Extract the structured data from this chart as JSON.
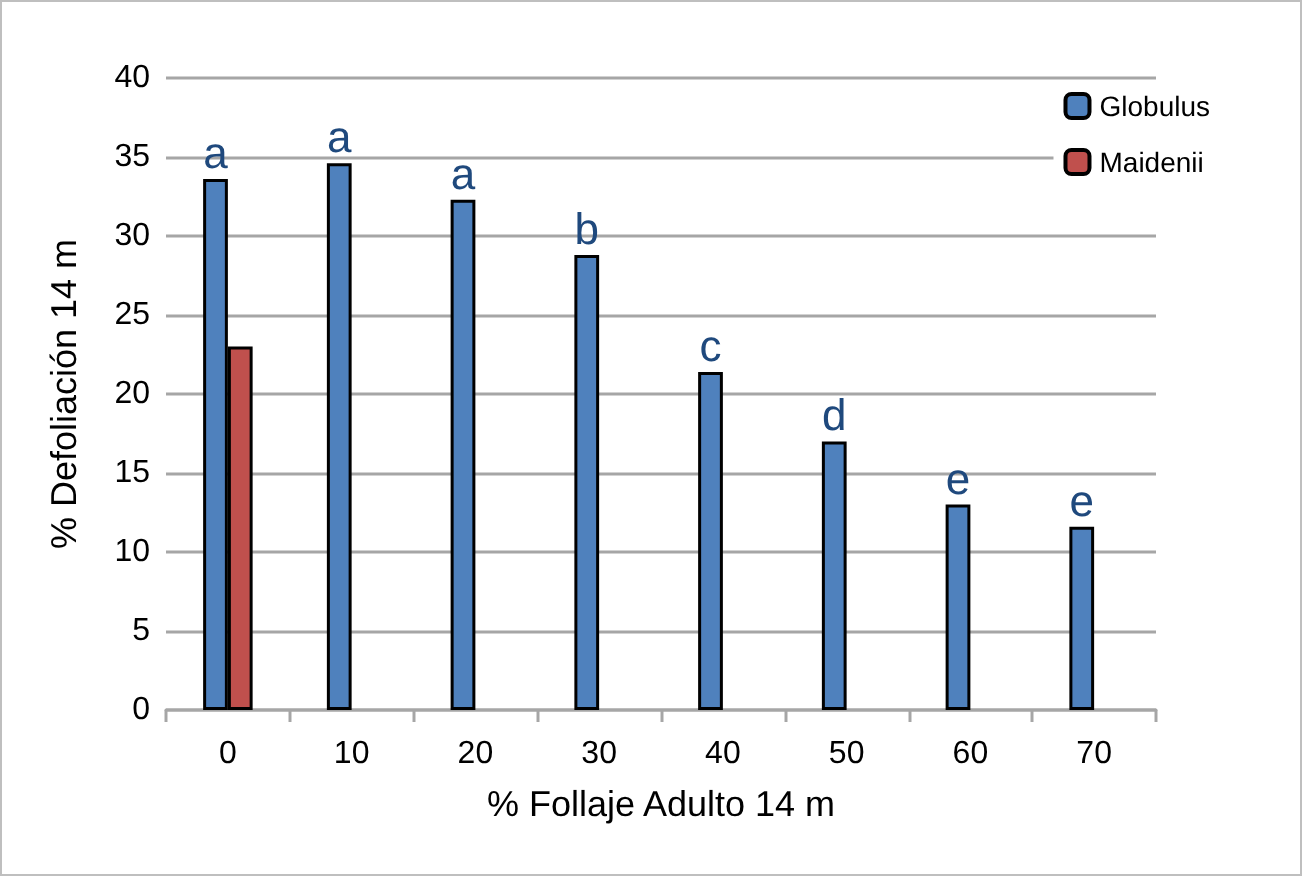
{
  "chart_data": {
    "type": "bar",
    "xlabel": "% Follaje Adulto 14 m",
    "ylabel": "% Defoliación 14 m",
    "categories": [
      "0",
      "10",
      "20",
      "30",
      "40",
      "50",
      "60",
      "70"
    ],
    "series": [
      {
        "name": "Globulus",
        "color": "#4f81bd",
        "values": [
          33.6,
          34.6,
          32.3,
          28.8,
          21.4,
          17.0,
          13.0,
          11.6
        ],
        "value_labels": [
          "a",
          "a",
          "a",
          "b",
          "c",
          "d",
          "e",
          "e"
        ]
      },
      {
        "name": "Maidenii",
        "color": "#c0504d",
        "values": [
          23.0,
          null,
          null,
          null,
          null,
          null,
          null,
          null
        ]
      }
    ],
    "ylim": [
      0,
      40
    ],
    "yticks": [
      0,
      5,
      10,
      15,
      20,
      25,
      30,
      35,
      40
    ],
    "grid": "y",
    "legend": "top right"
  }
}
